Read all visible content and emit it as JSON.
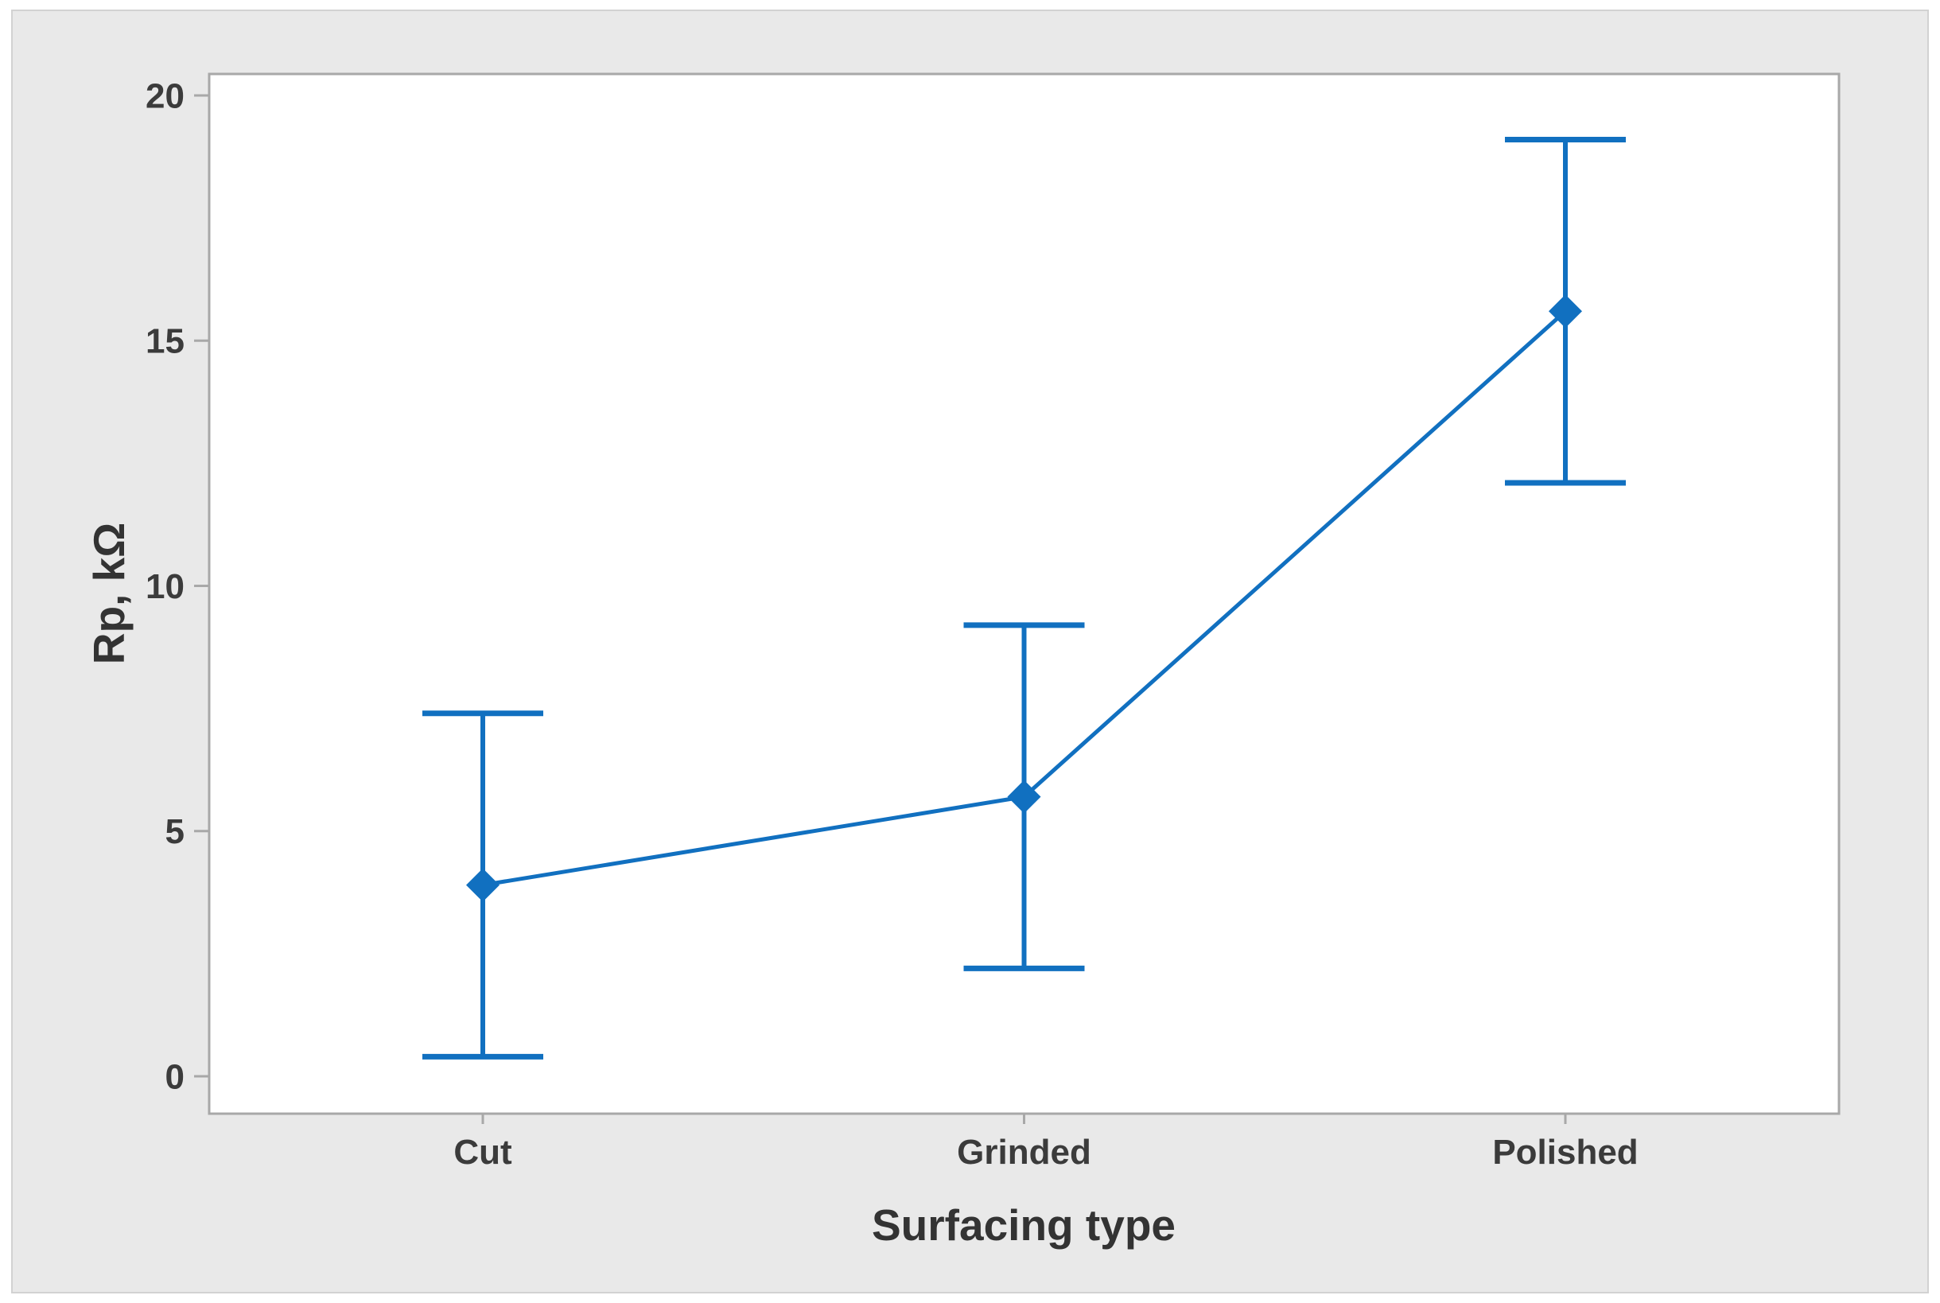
{
  "colors": {
    "series_blue": "#1170C0",
    "plot_border": "#A8A8A8",
    "panel_background": "#E9E9E9",
    "plot_background": "#FFFFFF",
    "tick_text": "#3B3B3B",
    "axis_title_text": "#333333"
  },
  "chart_data": {
    "type": "line",
    "subtype": "interval-plot-with-error-bars",
    "title": "",
    "xlabel": "Surfacing type",
    "ylabel": "Rp, kΩ",
    "categories": [
      "Cut",
      "Grinded",
      "Polished"
    ],
    "series": [
      {
        "name": "Rp",
        "means": [
          3.9,
          5.7,
          15.6
        ],
        "ci_low": [
          0.4,
          2.2,
          12.1
        ],
        "ci_high": [
          7.4,
          9.2,
          19.1
        ]
      }
    ],
    "ylim": [
      0,
      20
    ],
    "yticks": [
      0,
      5,
      10,
      15,
      20
    ],
    "grid": false,
    "legend": false,
    "marker": "diamond"
  }
}
